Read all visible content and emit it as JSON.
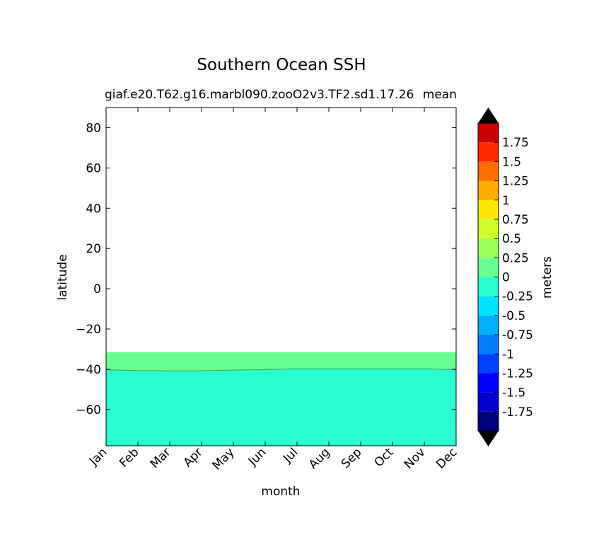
{
  "chart_data": {
    "type": "heatmap",
    "title": "Southern Ocean SSH",
    "subtitle_left": "giaf.e20.T62.g16.marbl090.zooO2v3.TF2.sd1.17.26",
    "subtitle_right": "mean",
    "xlabel": "month",
    "ylabel": "latitude",
    "x_categories": [
      "Jan",
      "Feb",
      "Mar",
      "Apr",
      "May",
      "Jun",
      "Jul",
      "Aug",
      "Sep",
      "Oct",
      "Nov",
      "Dec"
    ],
    "ylim": [
      -78,
      90
    ],
    "y_ticks": [
      80,
      60,
      40,
      20,
      0,
      -20,
      -40,
      -60
    ],
    "y_tick_labels": [
      "80",
      "60",
      "40",
      "20",
      "0",
      "−20",
      "−40",
      "−60"
    ],
    "data_region_top_latitude": -31.5,
    "contour_0_latitude": [
      -40.2,
      -40.7,
      -40.8,
      -40.8,
      -40.4,
      -40.2,
      -39.8,
      -39.8,
      -39.8,
      -39.8,
      -39.8,
      -40.2
    ],
    "region_above_contour_class": "0 to 0.25",
    "region_below_contour_class": "-0.25 to 0",
    "colorbar": {
      "label": "meters",
      "levels": [
        -2,
        -1.75,
        -1.5,
        -1.25,
        -1,
        -0.75,
        -0.5,
        -0.25,
        0,
        0.25,
        0.5,
        0.75,
        1,
        1.25,
        1.5,
        1.75,
        2
      ],
      "tick_labels": [
        "-1.75",
        "-1.5",
        "-1.25",
        "-1",
        "-0.75",
        "-0.5",
        "-0.25",
        "0",
        "0.25",
        "0.5",
        "0.75",
        "1",
        "1.25",
        "1.5",
        "1.75"
      ],
      "colors": [
        "#00007f",
        "#0000cc",
        "#0000ff",
        "#0040ff",
        "#0080ff",
        "#00b0ff",
        "#00e0ff",
        "#29ffce",
        "#66ff90",
        "#9aff5a",
        "#ceff29",
        "#ffe600",
        "#ffaa00",
        "#ff6c00",
        "#ff2b00",
        "#cc0000",
        "#800000"
      ],
      "extend_colors": {
        "low": "#000000",
        "high": "#000000"
      }
    }
  }
}
